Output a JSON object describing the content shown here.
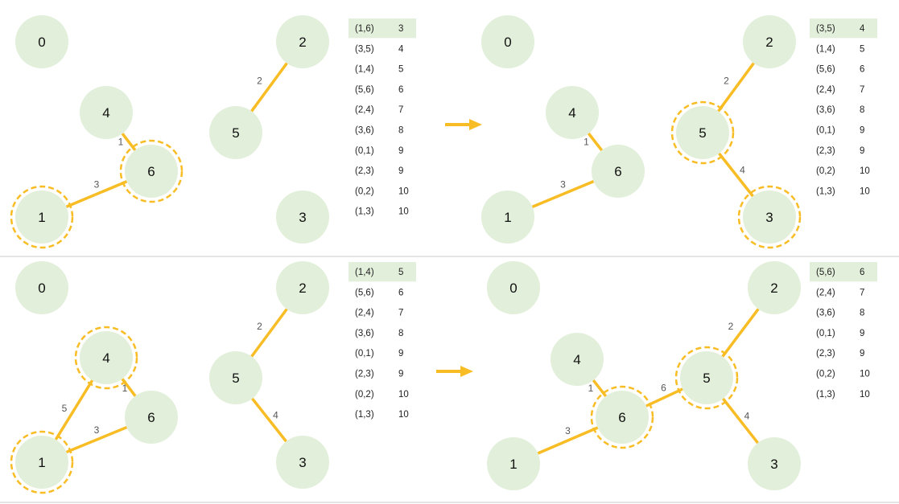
{
  "colors": {
    "node_fill": "#e2efda",
    "edge": "#f8bd25",
    "highlight_ring": "#f8bd25",
    "table_highlight_row": "#e2efda",
    "divider": "#c9c9c9",
    "arrow": "#f8bd25"
  },
  "panels": [
    {
      "id": "top-left",
      "nodes": [
        {
          "id": "0",
          "label": "0",
          "highlighted": false
        },
        {
          "id": "4",
          "label": "4",
          "highlighted": false
        },
        {
          "id": "6",
          "label": "6",
          "highlighted": true
        },
        {
          "id": "1",
          "label": "1",
          "highlighted": true
        },
        {
          "id": "5",
          "label": "5",
          "highlighted": false
        },
        {
          "id": "2",
          "label": "2",
          "highlighted": false
        },
        {
          "id": "3",
          "label": "3",
          "highlighted": false
        }
      ],
      "edges": [
        {
          "from": "4",
          "to": "6",
          "weight": "1"
        },
        {
          "from": "1",
          "to": "6",
          "weight": "3"
        },
        {
          "from": "5",
          "to": "2",
          "weight": "2"
        }
      ],
      "table": [
        {
          "edge": "(1,6)",
          "weight": "3",
          "highlighted": true
        },
        {
          "edge": "(3,5)",
          "weight": "4",
          "highlighted": false
        },
        {
          "edge": "(1,4)",
          "weight": "5",
          "highlighted": false
        },
        {
          "edge": "(5,6)",
          "weight": "6",
          "highlighted": false
        },
        {
          "edge": "(2,4)",
          "weight": "7",
          "highlighted": false
        },
        {
          "edge": "(3,6)",
          "weight": "8",
          "highlighted": false
        },
        {
          "edge": "(0,1)",
          "weight": "9",
          "highlighted": false
        },
        {
          "edge": "(2,3)",
          "weight": "9",
          "highlighted": false
        },
        {
          "edge": "(0,2)",
          "weight": "10",
          "highlighted": false
        },
        {
          "edge": "(1,3)",
          "weight": "10",
          "highlighted": false
        }
      ]
    },
    {
      "id": "top-right",
      "nodes": [
        {
          "id": "0",
          "label": "0",
          "highlighted": false
        },
        {
          "id": "4",
          "label": "4",
          "highlighted": false
        },
        {
          "id": "6",
          "label": "6",
          "highlighted": false
        },
        {
          "id": "1",
          "label": "1",
          "highlighted": false
        },
        {
          "id": "5",
          "label": "5",
          "highlighted": true
        },
        {
          "id": "2",
          "label": "2",
          "highlighted": false
        },
        {
          "id": "3",
          "label": "3",
          "highlighted": true
        }
      ],
      "edges": [
        {
          "from": "4",
          "to": "6",
          "weight": "1"
        },
        {
          "from": "1",
          "to": "6",
          "weight": "3"
        },
        {
          "from": "5",
          "to": "2",
          "weight": "2"
        },
        {
          "from": "5",
          "to": "3",
          "weight": "4"
        }
      ],
      "table": [
        {
          "edge": "(3,5)",
          "weight": "4",
          "highlighted": true
        },
        {
          "edge": "(1,4)",
          "weight": "5",
          "highlighted": false
        },
        {
          "edge": "(5,6)",
          "weight": "6",
          "highlighted": false
        },
        {
          "edge": "(2,4)",
          "weight": "7",
          "highlighted": false
        },
        {
          "edge": "(3,6)",
          "weight": "8",
          "highlighted": false
        },
        {
          "edge": "(0,1)",
          "weight": "9",
          "highlighted": false
        },
        {
          "edge": "(2,3)",
          "weight": "9",
          "highlighted": false
        },
        {
          "edge": "(0,2)",
          "weight": "10",
          "highlighted": false
        },
        {
          "edge": "(1,3)",
          "weight": "10",
          "highlighted": false
        }
      ]
    },
    {
      "id": "bottom-left",
      "nodes": [
        {
          "id": "0",
          "label": "0",
          "highlighted": false
        },
        {
          "id": "4",
          "label": "4",
          "highlighted": true
        },
        {
          "id": "6",
          "label": "6",
          "highlighted": false
        },
        {
          "id": "1",
          "label": "1",
          "highlighted": true
        },
        {
          "id": "5",
          "label": "5",
          "highlighted": false
        },
        {
          "id": "2",
          "label": "2",
          "highlighted": false
        },
        {
          "id": "3",
          "label": "3",
          "highlighted": false
        }
      ],
      "edges": [
        {
          "from": "4",
          "to": "6",
          "weight": "1"
        },
        {
          "from": "1",
          "to": "6",
          "weight": "3"
        },
        {
          "from": "1",
          "to": "4",
          "weight": "5"
        },
        {
          "from": "5",
          "to": "2",
          "weight": "2"
        },
        {
          "from": "5",
          "to": "3",
          "weight": "4"
        }
      ],
      "table": [
        {
          "edge": "(1,4)",
          "weight": "5",
          "highlighted": true
        },
        {
          "edge": "(5,6)",
          "weight": "6",
          "highlighted": false
        },
        {
          "edge": "(2,4)",
          "weight": "7",
          "highlighted": false
        },
        {
          "edge": "(3,6)",
          "weight": "8",
          "highlighted": false
        },
        {
          "edge": "(0,1)",
          "weight": "9",
          "highlighted": false
        },
        {
          "edge": "(2,3)",
          "weight": "9",
          "highlighted": false
        },
        {
          "edge": "(0,2)",
          "weight": "10",
          "highlighted": false
        },
        {
          "edge": "(1,3)",
          "weight": "10",
          "highlighted": false
        }
      ]
    },
    {
      "id": "bottom-right",
      "nodes": [
        {
          "id": "0",
          "label": "0",
          "highlighted": false
        },
        {
          "id": "4",
          "label": "4",
          "highlighted": false
        },
        {
          "id": "6",
          "label": "6",
          "highlighted": true
        },
        {
          "id": "1",
          "label": "1",
          "highlighted": false
        },
        {
          "id": "5",
          "label": "5",
          "highlighted": true
        },
        {
          "id": "2",
          "label": "2",
          "highlighted": false
        },
        {
          "id": "3",
          "label": "3",
          "highlighted": false
        }
      ],
      "edges": [
        {
          "from": "4",
          "to": "6",
          "weight": "1"
        },
        {
          "from": "1",
          "to": "6",
          "weight": "3"
        },
        {
          "from": "6",
          "to": "5",
          "weight": "6"
        },
        {
          "from": "5",
          "to": "2",
          "weight": "2"
        },
        {
          "from": "5",
          "to": "3",
          "weight": "4"
        }
      ],
      "table": [
        {
          "edge": "(5,6)",
          "weight": "6",
          "highlighted": true
        },
        {
          "edge": "(2,4)",
          "weight": "7",
          "highlighted": false
        },
        {
          "edge": "(3,6)",
          "weight": "8",
          "highlighted": false
        },
        {
          "edge": "(0,1)",
          "weight": "9",
          "highlighted": false
        },
        {
          "edge": "(2,3)",
          "weight": "9",
          "highlighted": false
        },
        {
          "edge": "(0,2)",
          "weight": "10",
          "highlighted": false
        },
        {
          "edge": "(1,3)",
          "weight": "10",
          "highlighted": false
        }
      ]
    }
  ]
}
